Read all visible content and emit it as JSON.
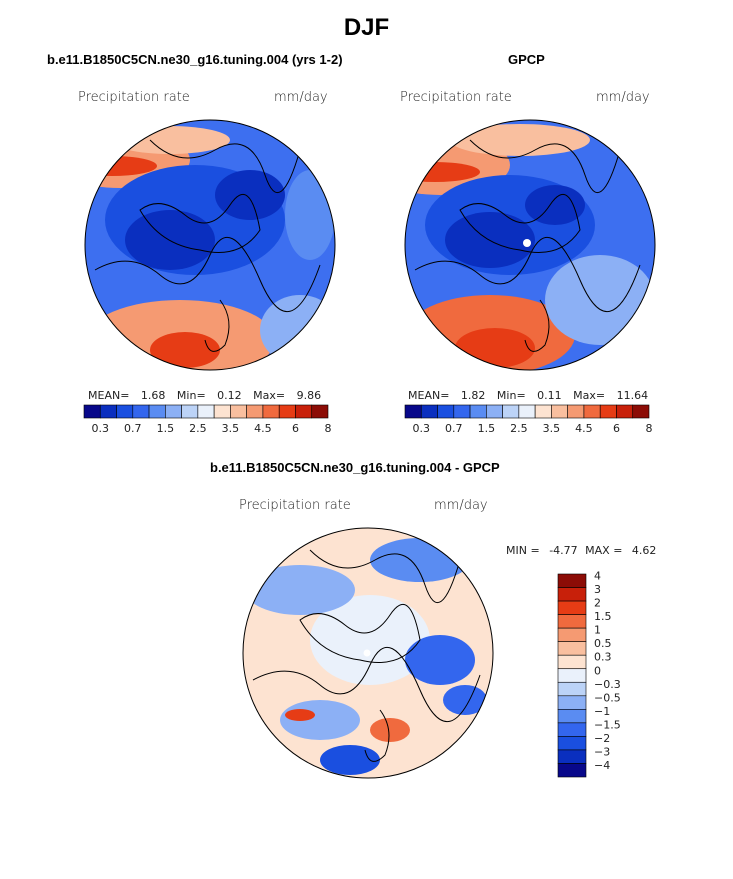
{
  "figure": {
    "title": "DJF",
    "colors": {
      "seq": [
        "#08088a",
        "#0a2fbf",
        "#1a4fe0",
        "#3366ee",
        "#5a8cf2",
        "#8cb0f5",
        "#bcd3f7",
        "#eaf1fb",
        "#fde3d1",
        "#f9bf9f",
        "#f59a72",
        "#f06a3e",
        "#e63c15",
        "#c8200a",
        "#8c0c06"
      ],
      "diff": [
        "#08088a",
        "#0a2fbf",
        "#1a4fe0",
        "#3366ee",
        "#5a8cf2",
        "#8cb0f5",
        "#bcd3f7",
        "#eaf1fb",
        "#fde3d1",
        "#f9bf9f",
        "#f59a72",
        "#f06a3e",
        "#e63c15",
        "#c8200a",
        "#8c0c06"
      ]
    }
  },
  "panel_model": {
    "title": "b.e11.B1850C5CN.ne30_g16.tuning.004 (yrs 1-2)",
    "variable": "Precipitation rate",
    "units": "mm/day",
    "stats": {
      "mean_label": "MEAN=",
      "mean": "1.68",
      "min_label": "Min=",
      "min": "0.12",
      "max_label": "Max=",
      "max": "9.86"
    },
    "colorbar_ticks": [
      "0.3",
      "0.7",
      "1.5",
      "2.5",
      "3.5",
      "4.5",
      "6",
      "8"
    ]
  },
  "panel_obs": {
    "title": "GPCP",
    "variable": "Precipitation rate",
    "units": "mm/day",
    "stats": {
      "mean_label": "MEAN=",
      "mean": "1.82",
      "min_label": "Min=",
      "min": "0.11",
      "max_label": "Max=",
      "max": "11.64"
    },
    "colorbar_ticks": [
      "0.3",
      "0.7",
      "1.5",
      "2.5",
      "3.5",
      "4.5",
      "6",
      "8"
    ]
  },
  "panel_diff": {
    "title": "b.e11.B1850C5CN.ne30_g16.tuning.004 - GPCP",
    "variable": "Precipitation rate",
    "units": "mm/day",
    "stats": {
      "min_label": "MIN =",
      "min": "-4.77",
      "max_label": "MAX =",
      "max": "4.62"
    },
    "colorbar_ticks": [
      "4",
      "3",
      "2",
      "1.5",
      "1",
      "0.5",
      "0.3",
      "0",
      "−0.3",
      "−0.5",
      "−1",
      "−1.5",
      "−2",
      "−3",
      "−4"
    ]
  }
}
